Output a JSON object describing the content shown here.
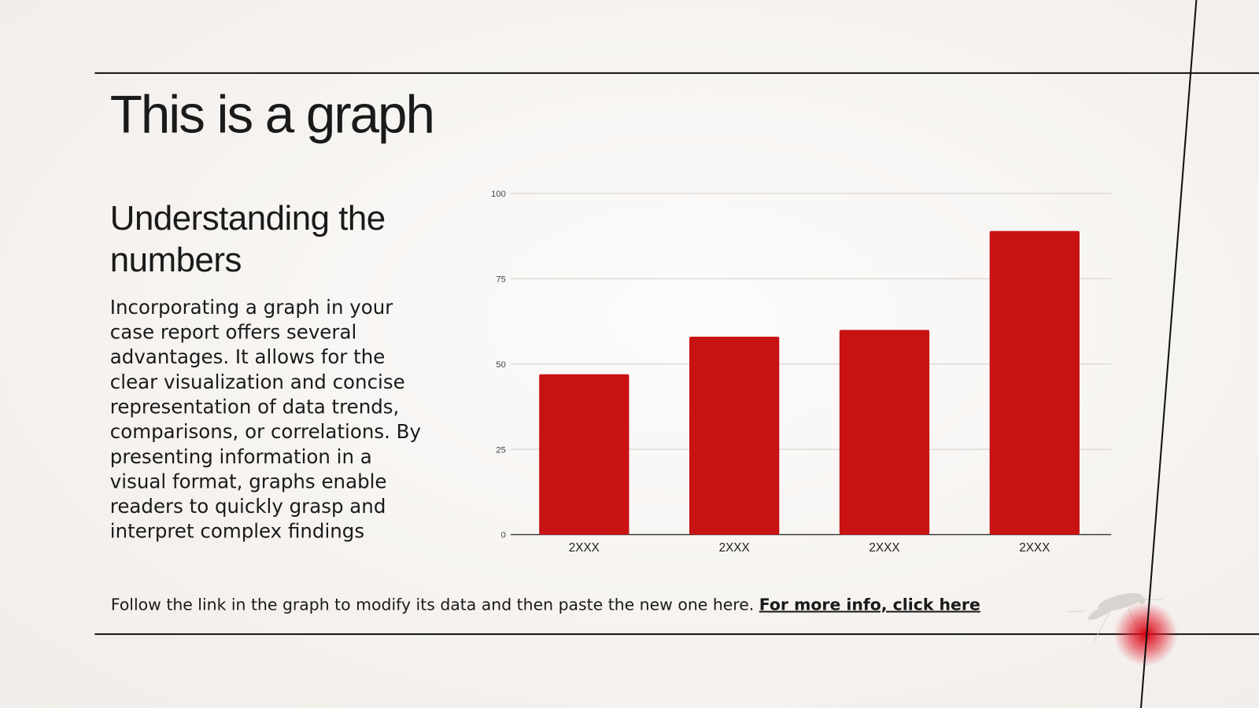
{
  "slide": {
    "title": "This is a graph",
    "subtitle": "Understanding the numbers",
    "body": "Incorporating a graph in your case report offers several advantages. It allows for the clear visualization and concise representation of data trends, comparisons, or correlations. By presenting information in a visual format, graphs enable readers to quickly grasp and interpret complex findings",
    "footer_text": "Follow the link in the graph to modify its data and then paste the new one here. ",
    "footer_link": "For more info, click here",
    "accent_color": "#c81214",
    "decoration_icon": "mosquito-icon"
  },
  "chart_data": {
    "type": "bar",
    "categories": [
      "2XXX",
      "2XXX",
      "2XXX",
      "2XXX"
    ],
    "values": [
      47,
      58,
      60,
      89
    ],
    "yticks": [
      0,
      25,
      50,
      75,
      100
    ],
    "ylim": [
      0,
      100
    ],
    "grid": true,
    "bar_color": "#c81214",
    "title": "",
    "xlabel": "",
    "ylabel": ""
  }
}
